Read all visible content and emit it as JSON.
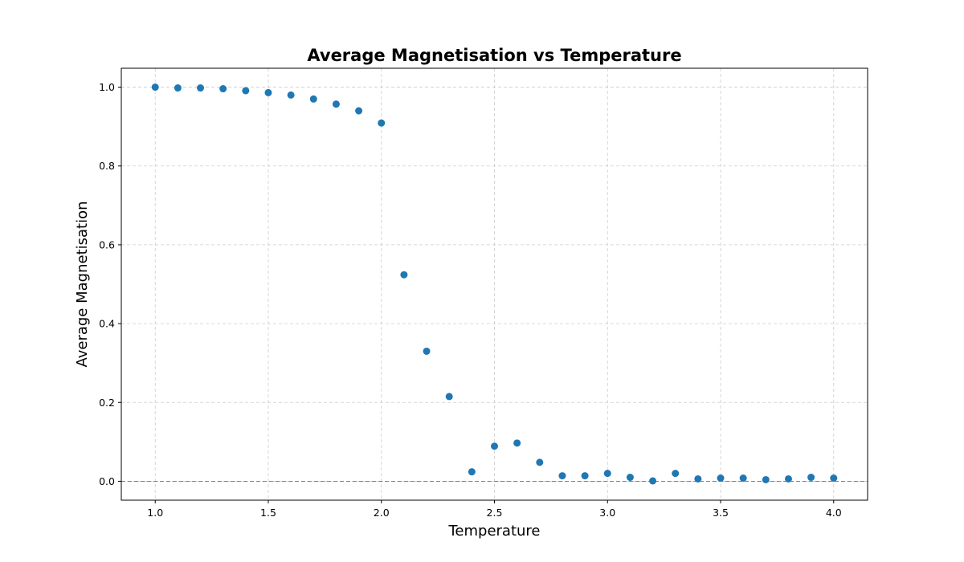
{
  "chart_data": {
    "type": "scatter",
    "title": "Average Magnetisation vs Temperature",
    "xlabel": "Temperature",
    "ylabel": "Average Magnetisation",
    "xlim": [
      0.85,
      4.15
    ],
    "ylim": [
      -0.048,
      1.048
    ],
    "xticks": [
      1.0,
      1.5,
      2.0,
      2.5,
      3.0,
      3.5,
      4.0
    ],
    "xtick_labels": [
      "1.0",
      "1.5",
      "2.0",
      "2.5",
      "3.0",
      "3.5",
      "4.0"
    ],
    "yticks": [
      0.0,
      0.2,
      0.4,
      0.6,
      0.8,
      1.0
    ],
    "ytick_labels": [
      "0.0",
      "0.2",
      "0.4",
      "0.6",
      "0.8",
      "1.0"
    ],
    "grid": true,
    "reference_line_y": 0.0,
    "marker_color": "#1f77b4",
    "grid_color": "#cccccc",
    "reference_line_color": "#808080",
    "series": [
      {
        "x": [
          1.0,
          1.1,
          1.2,
          1.3,
          1.4,
          1.5,
          1.6,
          1.7,
          1.8,
          1.9,
          2.0,
          2.1,
          2.2,
          2.3,
          2.4,
          2.5,
          2.6,
          2.7,
          2.8,
          2.9,
          3.0,
          3.1,
          3.2,
          3.3,
          3.4,
          3.5,
          3.6,
          3.7,
          3.8,
          3.9,
          4.0
        ],
        "y": [
          1.0,
          0.998,
          0.998,
          0.996,
          0.991,
          0.986,
          0.98,
          0.97,
          0.957,
          0.94,
          0.909,
          0.524,
          0.33,
          0.215,
          0.024,
          0.089,
          0.097,
          0.048,
          0.014,
          0.014,
          0.02,
          0.01,
          0.001,
          0.02,
          0.006,
          0.008,
          0.008,
          0.004,
          0.006,
          0.01,
          0.008
        ]
      }
    ]
  }
}
